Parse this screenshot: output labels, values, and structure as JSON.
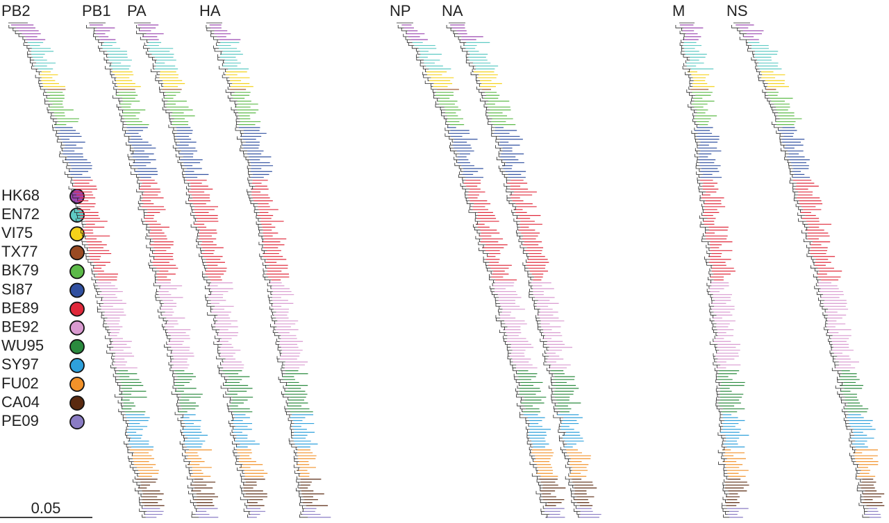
{
  "trees": [
    {
      "label": "PB2"
    },
    {
      "label": "PB1"
    },
    {
      "label": "PA"
    },
    {
      "label": "HA"
    },
    {
      "label": "NP"
    },
    {
      "label": "NA"
    },
    {
      "label": "M"
    },
    {
      "label": "NS"
    }
  ],
  "legend": [
    {
      "label": "HK68",
      "color": "#9b47b0"
    },
    {
      "label": "EN72",
      "color": "#5ecac4"
    },
    {
      "label": "VI75",
      "color": "#f5d21a"
    },
    {
      "label": "TX77",
      "color": "#9a4a22"
    },
    {
      "label": "BK79",
      "color": "#5cba48"
    },
    {
      "label": "SI87",
      "color": "#3150a0"
    },
    {
      "label": "BE89",
      "color": "#e0283a"
    },
    {
      "label": "BE92",
      "color": "#d99ad0"
    },
    {
      "label": "WU95",
      "color": "#2a8a3e"
    },
    {
      "label": "SY97",
      "color": "#2ea0dc"
    },
    {
      "label": "FU02",
      "color": "#f2922a"
    },
    {
      "label": "CA04",
      "color": "#5a2a10"
    },
    {
      "label": "PE09",
      "color": "#8a7cc4"
    }
  ],
  "scale_bar": {
    "label": "0.05"
  }
}
